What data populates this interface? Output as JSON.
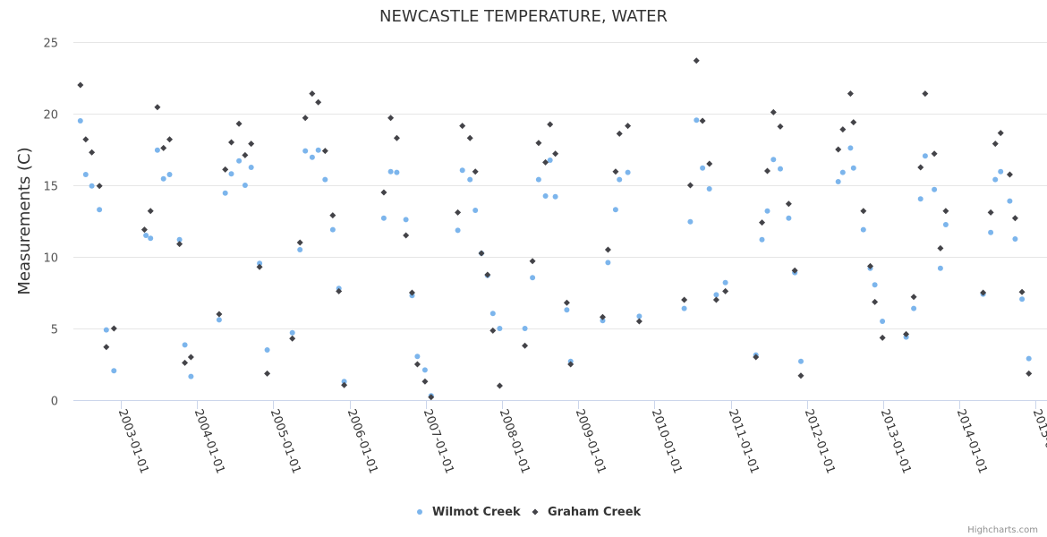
{
  "chart_data": {
    "type": "scatter",
    "title": "NEWCASTLE TEMPERATURE, WATER",
    "xlabel": "",
    "ylabel": "Measurements (C)",
    "xlim": [
      2002.35,
      2015.0
    ],
    "ylim": [
      0,
      25
    ],
    "yticks": [
      0,
      5,
      10,
      15,
      20,
      25
    ],
    "xtick_labels": [
      "2003-01-01",
      "2004-01-01",
      "2005-01-01",
      "2006-01-01",
      "2007-01-01",
      "2008-01-01",
      "2009-01-01",
      "2010-01-01",
      "2011-01-01",
      "2012-01-01",
      "2013-01-01",
      "2014-01-01",
      "2015-01-01"
    ],
    "xtick_values": [
      2003,
      2004,
      2005,
      2006,
      2007,
      2008,
      2009,
      2010,
      2011,
      2012,
      2013,
      2014,
      2015
    ],
    "grid": true,
    "legend_position": "bottom-center",
    "credits": "Highcharts.com",
    "series": [
      {
        "name": "Wilmot Creek",
        "color": "#7cb5ec",
        "marker": "circle",
        "x": [
          2002.47,
          2002.54,
          2002.62,
          2002.72,
          2002.81,
          2002.91,
          2003.33,
          2003.39,
          2003.48,
          2003.56,
          2003.64,
          2003.77,
          2003.84,
          2003.92,
          2004.29,
          2004.37,
          2004.45,
          2004.55,
          2004.63,
          2004.71,
          2004.82,
          2004.92,
          2005.25,
          2005.35,
          2005.42,
          2005.51,
          2005.59,
          2005.68,
          2005.78,
          2005.86,
          2005.93,
          2006.45,
          2006.54,
          2006.62,
          2006.74,
          2006.82,
          2006.89,
          2006.99,
          2007.07,
          2007.42,
          2007.48,
          2007.58,
          2007.65,
          2007.73,
          2007.81,
          2007.88,
          2007.97,
          2008.3,
          2008.4,
          2008.48,
          2008.57,
          2008.63,
          2008.7,
          2008.85,
          2008.9,
          2009.32,
          2009.39,
          2009.49,
          2009.54,
          2009.65,
          2009.8,
          2010.39,
          2010.47,
          2010.55,
          2010.63,
          2010.72,
          2010.81,
          2010.93,
          2011.33,
          2011.41,
          2011.48,
          2011.56,
          2011.65,
          2011.76,
          2011.84,
          2011.92,
          2012.41,
          2012.47,
          2012.57,
          2012.61,
          2012.74,
          2012.83,
          2012.89,
          2012.99,
          2013.3,
          2013.4,
          2013.49,
          2013.55,
          2013.67,
          2013.75,
          2013.82,
          2014.31,
          2014.41,
          2014.47,
          2014.54,
          2014.66,
          2014.73,
          2014.82,
          2014.91
        ],
        "y": [
          19.5,
          15.75,
          14.95,
          13.3,
          4.9,
          2.05,
          11.5,
          11.3,
          17.45,
          15.45,
          15.75,
          11.2,
          3.85,
          1.65,
          5.6,
          14.45,
          15.8,
          16.7,
          15.0,
          16.25,
          9.55,
          3.5,
          4.7,
          10.5,
          17.4,
          16.95,
          17.45,
          15.4,
          11.9,
          7.8,
          1.3,
          12.7,
          15.95,
          15.9,
          12.6,
          7.3,
          3.05,
          2.1,
          0.3,
          11.85,
          16.05,
          15.4,
          13.25,
          10.25,
          8.7,
          6.05,
          5.0,
          5.0,
          8.55,
          15.4,
          14.25,
          16.75,
          14.2,
          6.3,
          2.7,
          5.55,
          9.6,
          13.3,
          15.4,
          15.9,
          5.85,
          6.4,
          12.45,
          19.55,
          16.2,
          14.75,
          7.35,
          8.2,
          3.15,
          11.2,
          13.2,
          16.8,
          16.15,
          12.7,
          8.9,
          2.7,
          15.25,
          15.9,
          17.6,
          16.2,
          11.9,
          9.2,
          8.05,
          5.5,
          4.4,
          6.4,
          14.05,
          17.05,
          14.7,
          9.2,
          12.25,
          7.4,
          11.7,
          15.4,
          15.95,
          13.9,
          11.25,
          7.05,
          2.9
        ]
      },
      {
        "name": "Graham Creek",
        "color": "#434348",
        "marker": "diamond",
        "x": [
          2002.47,
          2002.54,
          2002.62,
          2002.72,
          2002.81,
          2002.91,
          2003.31,
          2003.39,
          2003.48,
          2003.56,
          2003.64,
          2003.77,
          2003.84,
          2003.92,
          2004.29,
          2004.37,
          2004.45,
          2004.55,
          2004.63,
          2004.71,
          2004.82,
          2004.92,
          2005.25,
          2005.35,
          2005.42,
          2005.51,
          2005.59,
          2005.68,
          2005.78,
          2005.86,
          2005.93,
          2006.45,
          2006.54,
          2006.62,
          2006.74,
          2006.82,
          2006.89,
          2006.99,
          2007.07,
          2007.42,
          2007.48,
          2007.58,
          2007.65,
          2007.73,
          2007.81,
          2007.88,
          2007.97,
          2008.3,
          2008.4,
          2008.48,
          2008.57,
          2008.63,
          2008.7,
          2008.85,
          2008.9,
          2009.32,
          2009.39,
          2009.49,
          2009.54,
          2009.65,
          2009.8,
          2010.39,
          2010.47,
          2010.55,
          2010.63,
          2010.72,
          2010.81,
          2010.93,
          2011.33,
          2011.41,
          2011.48,
          2011.56,
          2011.65,
          2011.76,
          2011.84,
          2011.92,
          2012.41,
          2012.47,
          2012.57,
          2012.61,
          2012.74,
          2012.83,
          2012.89,
          2012.99,
          2013.3,
          2013.4,
          2013.49,
          2013.55,
          2013.67,
          2013.75,
          2013.82,
          2014.31,
          2014.41,
          2014.47,
          2014.54,
          2014.66,
          2014.73,
          2014.82,
          2014.91
        ],
        "y": [
          22.0,
          18.2,
          17.3,
          14.95,
          3.7,
          5.0,
          11.9,
          13.2,
          20.45,
          17.6,
          18.2,
          10.9,
          2.6,
          3.0,
          6.0,
          16.1,
          18.0,
          19.3,
          17.1,
          17.9,
          9.3,
          1.85,
          4.3,
          11.0,
          19.7,
          21.4,
          20.8,
          17.4,
          12.9,
          7.6,
          1.05,
          14.5,
          19.7,
          18.3,
          11.5,
          7.5,
          2.5,
          1.3,
          0.2,
          13.1,
          19.15,
          18.3,
          15.95,
          10.25,
          8.75,
          4.85,
          1.0,
          3.8,
          9.7,
          17.95,
          16.6,
          19.25,
          17.2,
          6.8,
          2.5,
          5.8,
          10.5,
          15.95,
          18.6,
          19.15,
          5.5,
          7.0,
          15.0,
          23.7,
          19.5,
          16.5,
          7.0,
          7.6,
          3.0,
          12.4,
          16.0,
          20.1,
          19.1,
          13.7,
          9.05,
          1.7,
          17.5,
          18.9,
          21.4,
          19.4,
          13.2,
          9.35,
          6.85,
          4.35,
          4.6,
          7.2,
          16.25,
          21.4,
          17.2,
          10.6,
          13.2,
          7.5,
          13.1,
          17.9,
          18.65,
          15.75,
          12.7,
          7.55,
          1.85
        ]
      }
    ]
  }
}
